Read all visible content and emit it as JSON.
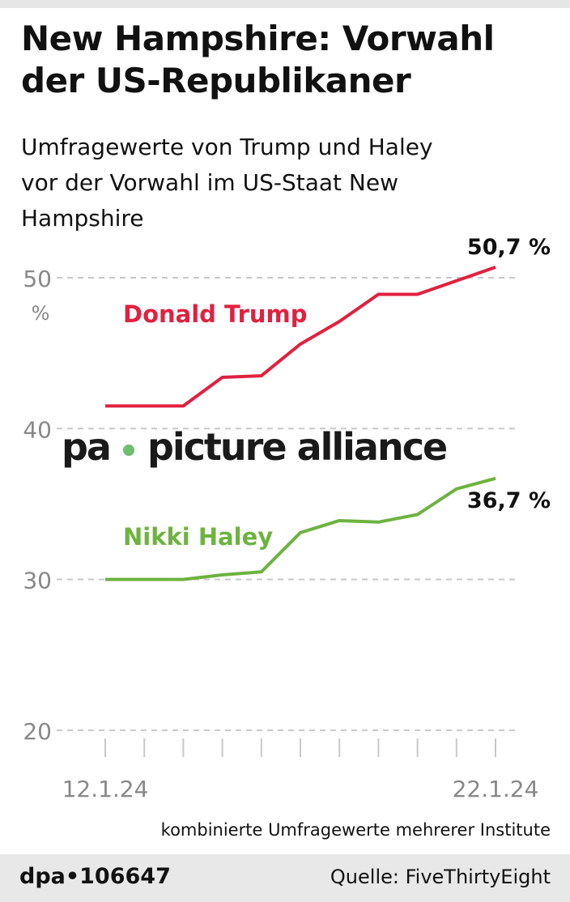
{
  "title": "New Hampshire: Vorwahl der US-Republikaner",
  "subtitle": "Umfragewerte von Trump und Haley vor der Vorwahl im US-Staat New Hampshire",
  "note": "kombinierte Umfragewerte mehrerer Institute",
  "footer": {
    "id": "dpa•106647",
    "source": "Quelle: FiveThirtyEight"
  },
  "watermark": {
    "left": "pa",
    "right": "picture alliance"
  },
  "chart_data": {
    "type": "line",
    "ylim": [
      20,
      51
    ],
    "yticks": [
      20,
      30,
      40,
      50
    ],
    "yunit": "%",
    "grid": true,
    "x": [
      "12.1.24",
      "13.1.24",
      "14.1.24",
      "15.1.24",
      "16.1.24",
      "17.1.24",
      "18.1.24",
      "19.1.24",
      "20.1.24",
      "21.1.24",
      "22.1.24"
    ],
    "xtick_labels": [
      "12.1.24",
      "22.1.24"
    ],
    "series": [
      {
        "name": "Donald Trump",
        "color": "#e0213f",
        "values": [
          41.5,
          41.5,
          41.5,
          43.4,
          43.5,
          45.6,
          47.1,
          48.9,
          48.9,
          49.8,
          50.7
        ],
        "end_label": "50,7 %"
      },
      {
        "name": "Nikki Haley",
        "color": "#6db33f",
        "values": [
          30.0,
          30.0,
          30.0,
          30.3,
          30.5,
          33.1,
          33.9,
          33.8,
          34.3,
          36.0,
          36.7
        ],
        "end_label": "36,7 %"
      }
    ]
  }
}
